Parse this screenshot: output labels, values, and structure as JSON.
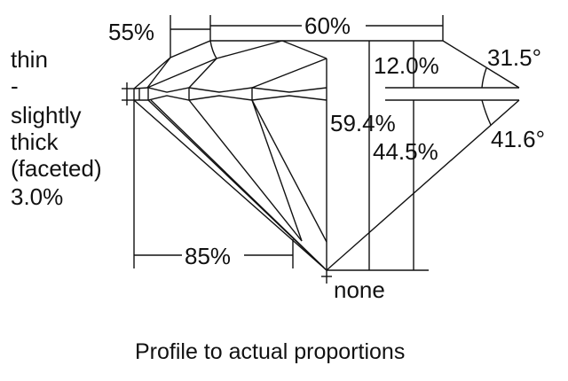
{
  "girdle_label": [
    "thin",
    "-",
    "slightly",
    "thick",
    "(faceted)",
    "3.0%"
  ],
  "lower_half_label": "55%",
  "table_label": "60%",
  "crown_height_label": "12.0%",
  "crown_angle_label": "31.5°",
  "total_depth_label": "59.4%",
  "pavilion_depth_label": "44.5%",
  "pavilion_angle_label": "41.6°",
  "star_length_label": "85%",
  "culet_label": "none",
  "caption": "Profile to actual proportions"
}
